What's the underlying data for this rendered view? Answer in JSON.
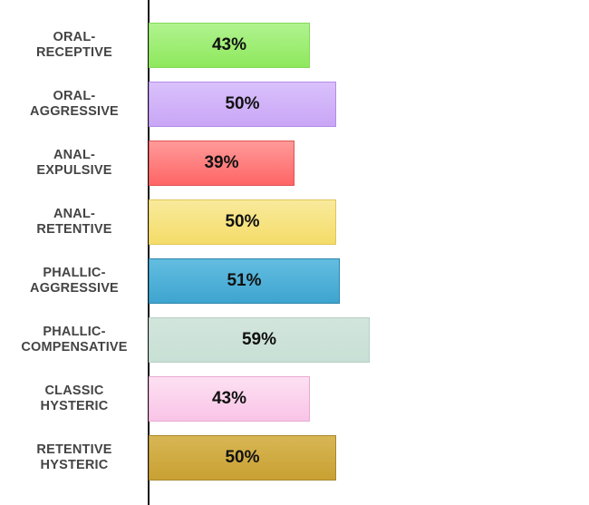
{
  "chart_data": {
    "type": "bar",
    "orientation": "horizontal",
    "categories": [
      [
        "ORAL-",
        "RECEPTIVE"
      ],
      [
        "ORAL-",
        "AGGRESSIVE"
      ],
      [
        "ANAL-",
        "EXPULSIVE"
      ],
      [
        "ANAL-",
        "RETENTIVE"
      ],
      [
        "PHALLIC-",
        "AGGRESSIVE"
      ],
      [
        "PHALLIC-",
        "COMPENSATIVE"
      ],
      [
        "CLASSIC",
        "HYSTERIC"
      ],
      [
        "RETENTIVE",
        "HYSTERIC"
      ]
    ],
    "values": [
      43,
      50,
      39,
      50,
      51,
      59,
      43,
      50
    ],
    "value_labels": [
      "43%",
      "50%",
      "39%",
      "50%",
      "51%",
      "59%",
      "43%",
      "50%"
    ],
    "colors": [
      [
        "#b0f38f",
        "#8ee85c",
        "#86d95a"
      ],
      [
        "#d9c0fb",
        "#c9a6f6",
        "#b58ae8"
      ],
      [
        "#ff9a9a",
        "#ff6565",
        "#e05252"
      ],
      [
        "#f9ea9c",
        "#f4dc68",
        "#dfc657"
      ],
      [
        "#63bde0",
        "#3ea5d0",
        "#2c86ad"
      ],
      [
        "#d2e5dc",
        "#c8e0d5",
        "#b6cfc3"
      ],
      [
        "#fde0f2",
        "#f9c4e6",
        "#e8a9d2"
      ],
      [
        "#d8b654",
        "#c9a133",
        "#a8862a"
      ]
    ],
    "xlim": [
      0,
      100
    ],
    "title": "",
    "xlabel": "",
    "ylabel": ""
  }
}
